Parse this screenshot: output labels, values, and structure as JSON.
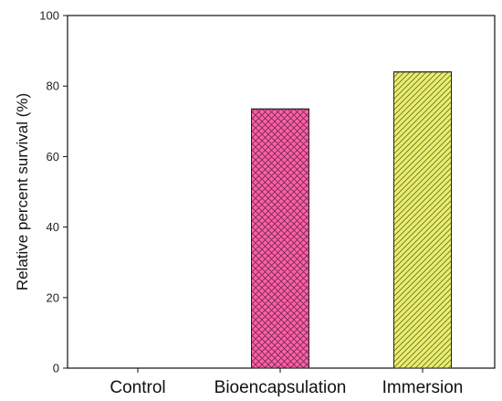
{
  "chart_data": {
    "type": "bar",
    "title": "",
    "xlabel": "",
    "ylabel": "Relative percent survival (%)",
    "categories": [
      "Control",
      "Bioencapsulation",
      "Immersion"
    ],
    "values": [
      0,
      73.5,
      84
    ],
    "ylim": [
      0,
      100
    ],
    "yticks": [
      0,
      20,
      40,
      60,
      80,
      100
    ],
    "grid": false,
    "legend": "none",
    "bar_colors": [
      "#ffffff",
      "#ff5fa8",
      "#e8ef70"
    ],
    "bar_patterns": [
      "none",
      "crosshatch",
      "diagonal"
    ]
  }
}
